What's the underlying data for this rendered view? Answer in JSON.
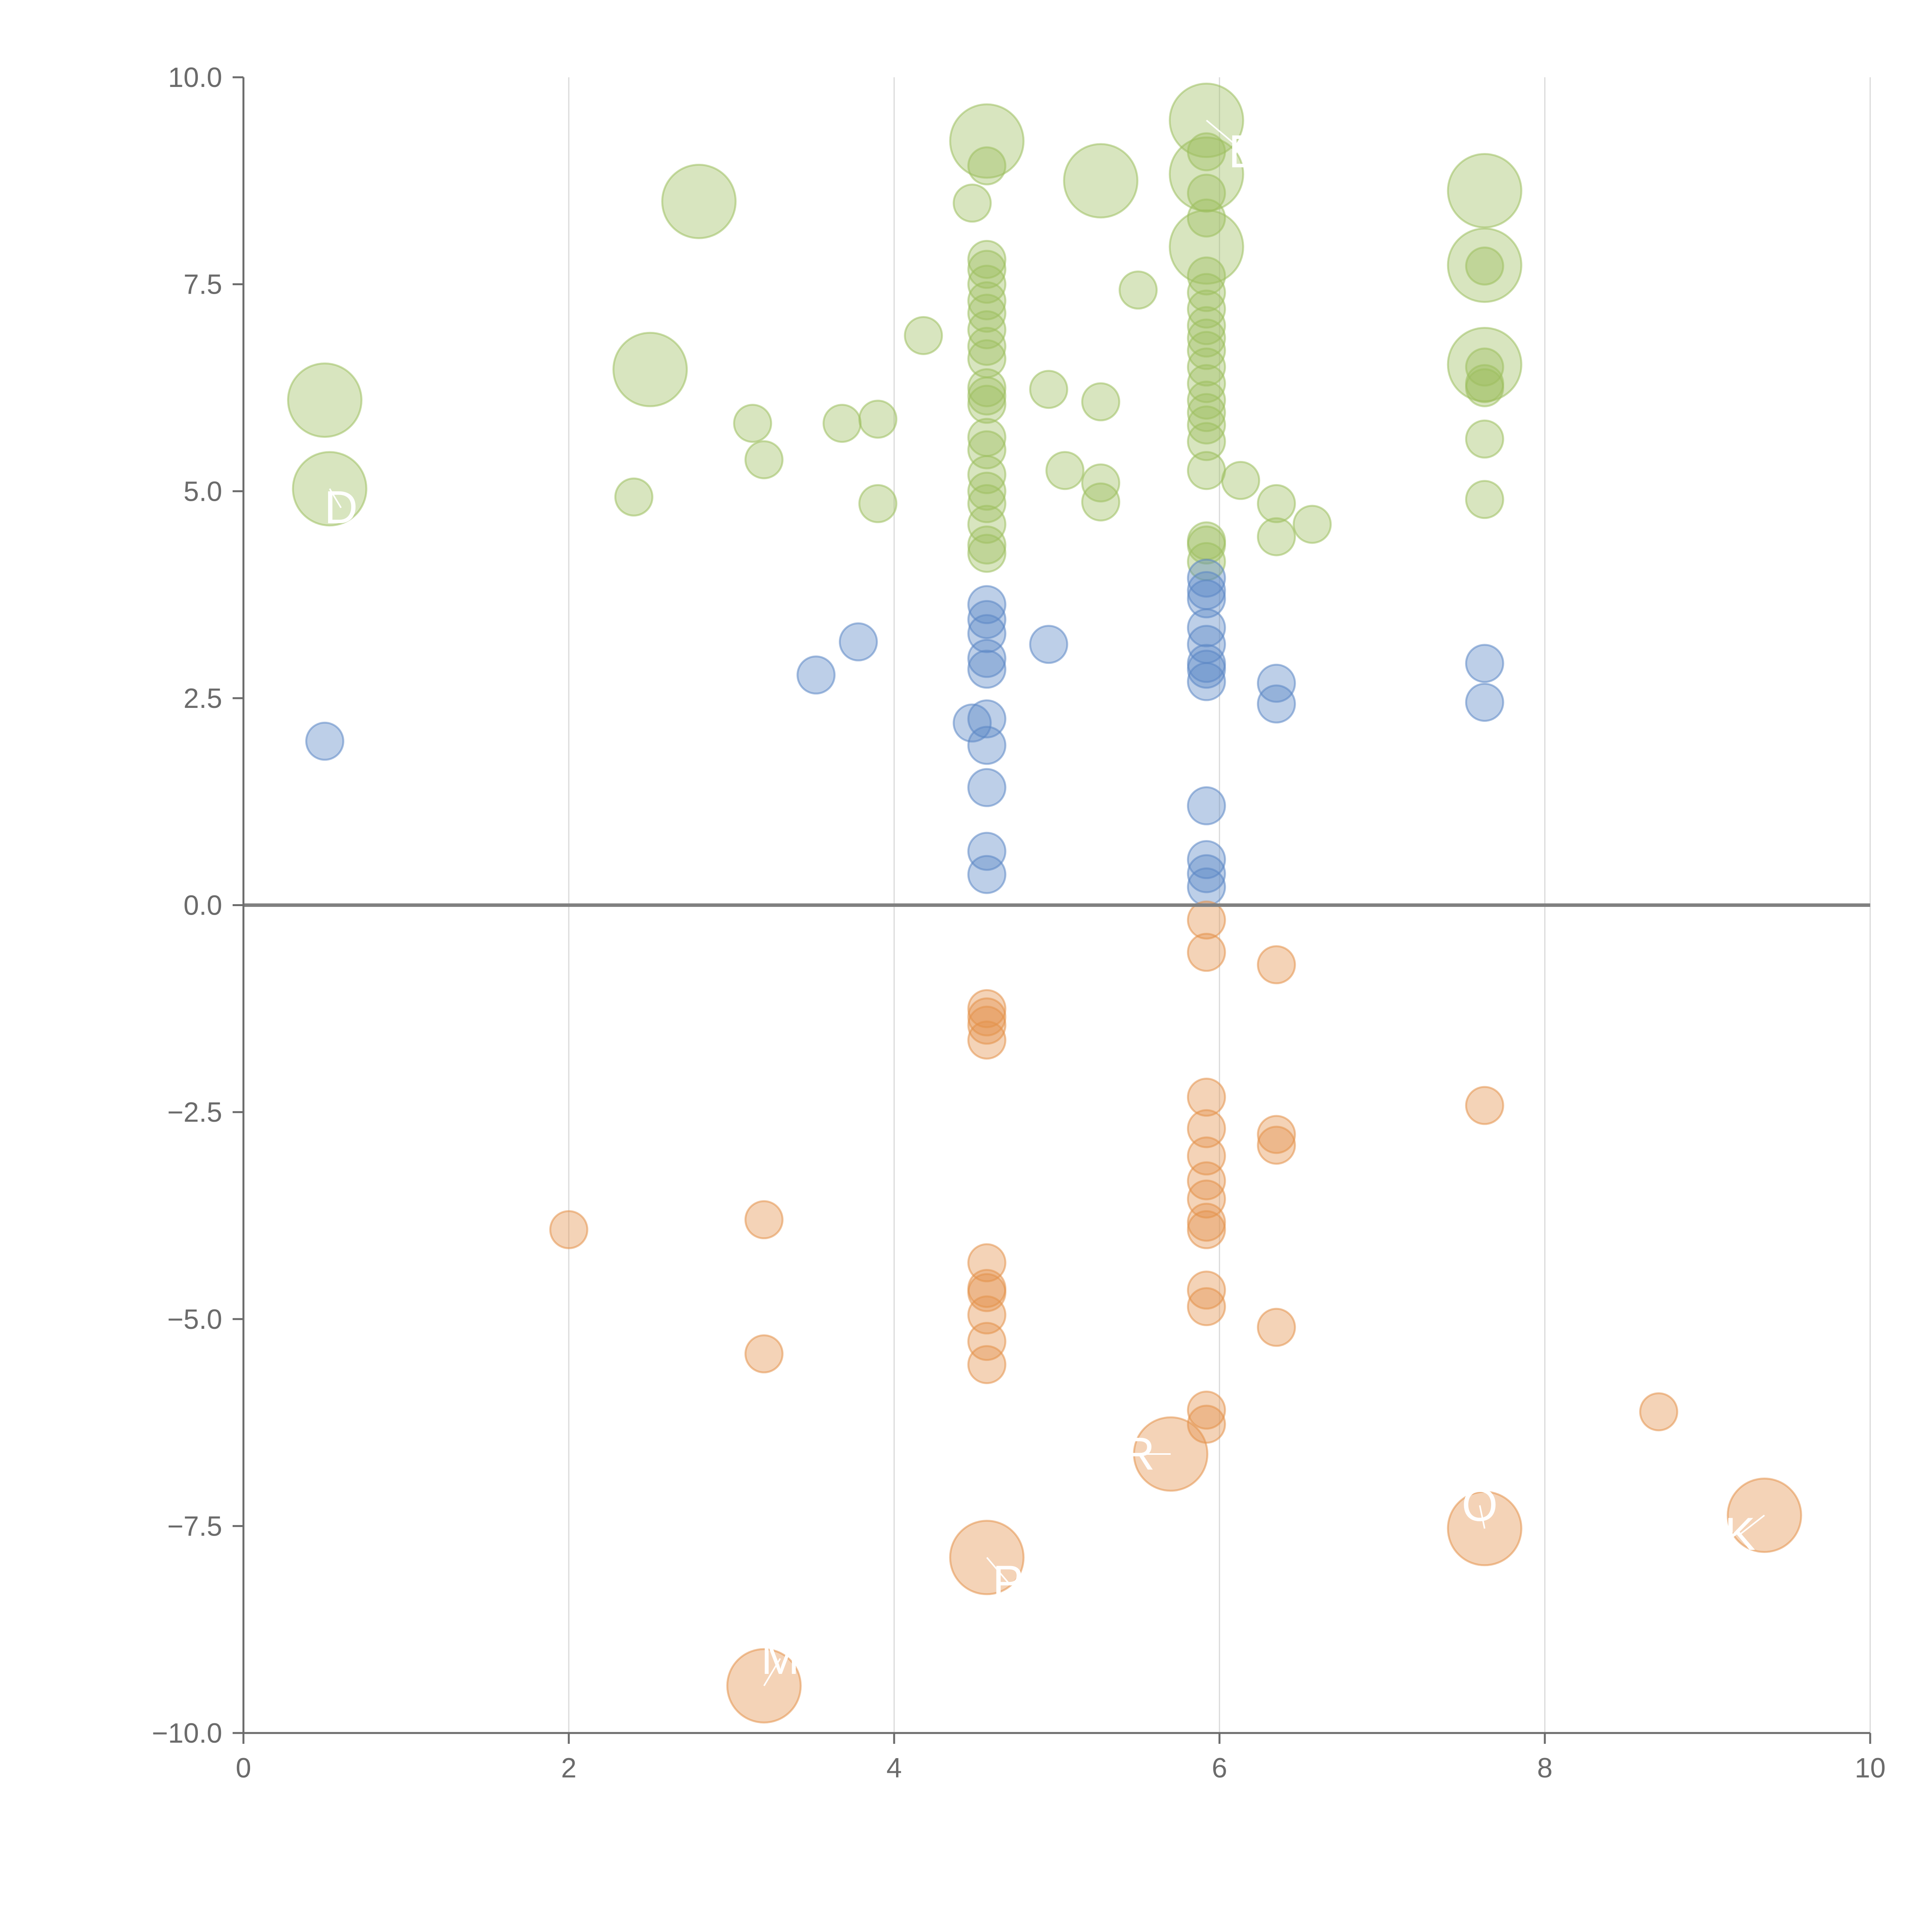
{
  "chart_data": {
    "type": "scatter",
    "title": "",
    "xlabel": "",
    "ylabel": "",
    "xlim": [
      0,
      10
    ],
    "ylim": [
      -10,
      10
    ],
    "x_ticks": [
      "0",
      "2",
      "4",
      "6",
      "8",
      "10"
    ],
    "y_ticks": [
      "10.0",
      "7.5",
      "5.0",
      "2.5",
      "0.0",
      "−2.5",
      "−5.0",
      "−7.5",
      "−10.0"
    ],
    "grid": "vertical",
    "colors": {
      "green": "#9dbf5f",
      "blue": "#5b87c5",
      "orange": "#e3924a",
      "axis": "#6b6b6b",
      "zero_line": "#808080",
      "grid": "#d9d9d9"
    },
    "series": [
      {
        "name": "green",
        "points": [
          [
            0.5,
            6.1,
            "L"
          ],
          [
            0.53,
            5.03,
            "L"
          ],
          [
            2.4,
            4.93,
            "S"
          ],
          [
            2.5,
            6.47,
            "L"
          ],
          [
            2.8,
            8.5,
            "L"
          ],
          [
            3.13,
            5.82,
            "S"
          ],
          [
            3.2,
            5.38,
            "S"
          ],
          [
            3.68,
            5.82,
            "S"
          ],
          [
            3.9,
            5.87,
            "S"
          ],
          [
            3.9,
            4.85,
            "S"
          ],
          [
            4.18,
            6.88,
            "S"
          ],
          [
            4.48,
            8.48,
            "S"
          ],
          [
            4.57,
            9.23,
            "L"
          ],
          [
            4.57,
            8.93,
            "S"
          ],
          [
            4.57,
            7.8,
            "S"
          ],
          [
            4.57,
            7.68,
            "S"
          ],
          [
            4.57,
            7.5,
            "S"
          ],
          [
            4.57,
            7.3,
            "S"
          ],
          [
            4.57,
            7.15,
            "S"
          ],
          [
            4.57,
            6.95,
            "S"
          ],
          [
            4.57,
            6.75,
            "S"
          ],
          [
            4.57,
            6.6,
            "S"
          ],
          [
            4.57,
            6.25,
            "S"
          ],
          [
            4.57,
            6.15,
            "S"
          ],
          [
            4.57,
            6.05,
            "S"
          ],
          [
            4.57,
            5.65,
            "S"
          ],
          [
            4.57,
            5.5,
            "S"
          ],
          [
            4.57,
            5.2,
            "S"
          ],
          [
            4.57,
            5.0,
            "S"
          ],
          [
            4.57,
            4.85,
            "S"
          ],
          [
            4.57,
            4.6,
            "S"
          ],
          [
            4.57,
            4.35,
            "S"
          ],
          [
            4.57,
            4.25,
            "S"
          ],
          [
            4.95,
            6.23,
            "S"
          ],
          [
            5.05,
            5.25,
            "S"
          ],
          [
            5.27,
            8.75,
            "L"
          ],
          [
            5.27,
            6.08,
            "S"
          ],
          [
            5.27,
            5.1,
            "S"
          ],
          [
            5.27,
            4.87,
            "S"
          ],
          [
            5.5,
            7.43,
            "S"
          ],
          [
            5.92,
            9.48,
            "L"
          ],
          [
            5.92,
            8.83,
            "L"
          ],
          [
            5.92,
            7.95,
            "L"
          ],
          [
            5.92,
            9.1,
            "S"
          ],
          [
            5.92,
            8.6,
            "S"
          ],
          [
            5.92,
            8.3,
            "S"
          ],
          [
            5.92,
            7.6,
            "S"
          ],
          [
            5.92,
            7.4,
            "S"
          ],
          [
            5.92,
            7.2,
            "S"
          ],
          [
            5.92,
            7.0,
            "S"
          ],
          [
            5.92,
            6.85,
            "S"
          ],
          [
            5.92,
            6.7,
            "S"
          ],
          [
            5.92,
            6.5,
            "S"
          ],
          [
            5.92,
            6.3,
            "S"
          ],
          [
            5.92,
            6.1,
            "S"
          ],
          [
            5.92,
            5.95,
            "S"
          ],
          [
            5.92,
            5.8,
            "S"
          ],
          [
            5.92,
            5.6,
            "S"
          ],
          [
            5.92,
            5.25,
            "S"
          ],
          [
            5.92,
            4.4,
            "S"
          ],
          [
            5.92,
            4.35,
            "S"
          ],
          [
            5.92,
            4.15,
            "S"
          ],
          [
            6.13,
            5.13,
            "S"
          ],
          [
            6.35,
            4.85,
            "S"
          ],
          [
            6.35,
            4.45,
            "S"
          ],
          [
            6.57,
            4.6,
            "S"
          ],
          [
            7.63,
            8.63,
            "L"
          ],
          [
            7.63,
            7.73,
            "L"
          ],
          [
            7.63,
            7.72,
            "S"
          ],
          [
            7.63,
            6.53,
            "L"
          ],
          [
            7.63,
            6.5,
            "S"
          ],
          [
            7.63,
            6.3,
            "S"
          ],
          [
            7.63,
            6.25,
            "S"
          ],
          [
            7.63,
            5.63,
            "S"
          ],
          [
            7.63,
            4.9,
            "S"
          ]
        ]
      },
      {
        "name": "blue",
        "points": [
          [
            0.5,
            1.98,
            "S"
          ],
          [
            3.52,
            2.78,
            "S"
          ],
          [
            3.78,
            3.18,
            "S"
          ],
          [
            4.48,
            2.2,
            "S"
          ],
          [
            4.57,
            3.63,
            "S"
          ],
          [
            4.57,
            3.45,
            "S"
          ],
          [
            4.57,
            3.28,
            "S"
          ],
          [
            4.57,
            2.98,
            "S"
          ],
          [
            4.57,
            2.85,
            "S"
          ],
          [
            4.57,
            2.25,
            "S"
          ],
          [
            4.57,
            1.93,
            "S"
          ],
          [
            4.57,
            1.42,
            "S"
          ],
          [
            4.57,
            0.65,
            "S"
          ],
          [
            4.57,
            0.37,
            "S"
          ],
          [
            4.95,
            3.15,
            "S"
          ],
          [
            5.92,
            3.95,
            "S"
          ],
          [
            5.92,
            3.8,
            "S"
          ],
          [
            5.92,
            3.7,
            "S"
          ],
          [
            5.92,
            3.35,
            "S"
          ],
          [
            5.92,
            3.15,
            "S"
          ],
          [
            5.92,
            2.92,
            "S"
          ],
          [
            5.92,
            2.85,
            "S"
          ],
          [
            5.92,
            2.7,
            "S"
          ],
          [
            5.92,
            1.2,
            "S"
          ],
          [
            5.92,
            0.55,
            "S"
          ],
          [
            5.92,
            0.38,
            "S"
          ],
          [
            5.92,
            0.22,
            "S"
          ],
          [
            6.35,
            2.68,
            "S"
          ],
          [
            6.35,
            2.43,
            "S"
          ],
          [
            7.63,
            2.92,
            "S"
          ],
          [
            7.63,
            2.45,
            "S"
          ]
        ]
      },
      {
        "name": "orange",
        "points": [
          [
            2.0,
            -3.92,
            "S"
          ],
          [
            3.2,
            -3.8,
            "S"
          ],
          [
            3.2,
            -5.42,
            "S"
          ],
          [
            3.2,
            -9.43,
            "L"
          ],
          [
            4.57,
            -1.25,
            "S"
          ],
          [
            4.57,
            -1.35,
            "S"
          ],
          [
            4.57,
            -1.45,
            "S"
          ],
          [
            4.57,
            -1.63,
            "S"
          ],
          [
            4.57,
            -4.32,
            "S"
          ],
          [
            4.57,
            -4.63,
            "S"
          ],
          [
            4.57,
            -4.68,
            "S"
          ],
          [
            4.57,
            -4.95,
            "S"
          ],
          [
            4.57,
            -5.27,
            "S"
          ],
          [
            4.57,
            -5.55,
            "S"
          ],
          [
            4.57,
            -7.88,
            "L"
          ],
          [
            5.7,
            -6.63,
            "L"
          ],
          [
            5.92,
            -0.18,
            "S"
          ],
          [
            5.92,
            -0.57,
            "S"
          ],
          [
            5.92,
            -2.32,
            "S"
          ],
          [
            5.92,
            -2.7,
            "S"
          ],
          [
            5.92,
            -3.03,
            "S"
          ],
          [
            5.92,
            -3.33,
            "S"
          ],
          [
            5.92,
            -3.55,
            "S"
          ],
          [
            5.92,
            -3.83,
            "S"
          ],
          [
            5.92,
            -3.92,
            "S"
          ],
          [
            5.92,
            -4.65,
            "S"
          ],
          [
            5.92,
            -4.85,
            "S"
          ],
          [
            5.92,
            -6.1,
            "S"
          ],
          [
            5.92,
            -6.27,
            "S"
          ],
          [
            6.35,
            -0.72,
            "S"
          ],
          [
            6.35,
            -2.77,
            "S"
          ],
          [
            6.35,
            -2.9,
            "S"
          ],
          [
            6.35,
            -5.1,
            "S"
          ],
          [
            7.63,
            -2.42,
            "S"
          ],
          [
            7.63,
            -7.53,
            "L"
          ],
          [
            8.7,
            -6.12,
            "S"
          ],
          [
            9.35,
            -7.37,
            "L"
          ]
        ]
      }
    ],
    "annotations": [
      {
        "text": "D",
        "x": 0.6,
        "y": 4.8,
        "from": [
          0.53,
          5.03
        ]
      },
      {
        "text": "R",
        "x": 5.5,
        "y": -6.63,
        "from": [
          5.7,
          -6.63
        ]
      },
      {
        "text": "P",
        "x": 4.7,
        "y": -8.18,
        "from": [
          4.57,
          -7.88
        ]
      },
      {
        "text": "M",
        "x": 3.3,
        "y": -9.1,
        "from": [
          3.2,
          -9.43
        ]
      },
      {
        "text": "K",
        "x": 9.2,
        "y": -7.6,
        "from": [
          9.35,
          -7.37
        ]
      },
      {
        "text": "O",
        "x": 7.6,
        "y": -7.25,
        "from": [
          7.63,
          -7.53
        ]
      },
      {
        "text": "E",
        "x": 6.15,
        "y": 9.1,
        "from": [
          5.92,
          9.48
        ]
      }
    ]
  }
}
